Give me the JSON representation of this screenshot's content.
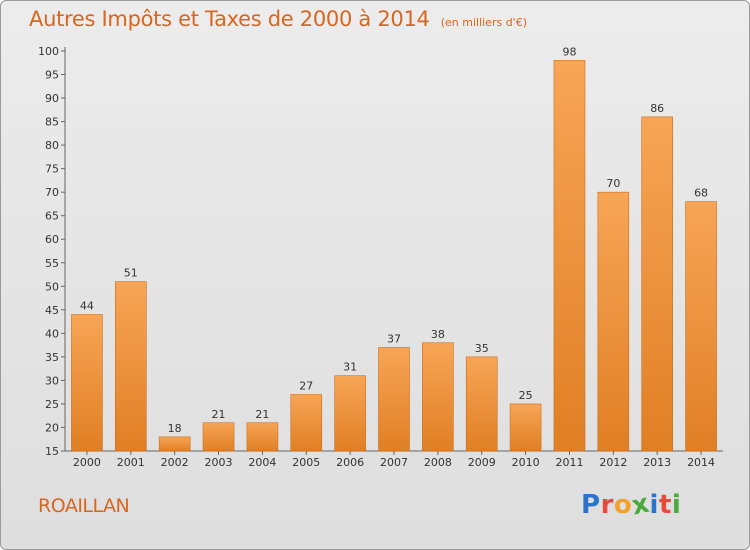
{
  "chart_data": {
    "type": "bar",
    "title": "Autres Impôts et Taxes de 2000 à 2014",
    "subtitle": "(en milliers d'€)",
    "categories": [
      "2000",
      "2001",
      "2002",
      "2003",
      "2004",
      "2005",
      "2006",
      "2007",
      "2008",
      "2009",
      "2010",
      "2011",
      "2012",
      "2013",
      "2014"
    ],
    "values": [
      44,
      51,
      18,
      21,
      21,
      27,
      31,
      37,
      38,
      35,
      25,
      98,
      70,
      86,
      68
    ],
    "ylim": [
      15,
      100
    ],
    "yticks": [
      15,
      20,
      25,
      30,
      35,
      40,
      45,
      50,
      55,
      60,
      65,
      70,
      75,
      80,
      85,
      90,
      95,
      100
    ],
    "grid": false,
    "colors": {
      "bar_top": "#f7a556",
      "bar_bottom": "#e07f24",
      "bar_edge": "#cc6e1a",
      "title": "#d9661e"
    }
  },
  "footer": {
    "commune": "ROAILLAN",
    "logo_letters": [
      "P",
      "r",
      "o",
      "x",
      "i",
      "t",
      "i"
    ],
    "logo_colors": [
      "#2b74c9",
      "#e7493b",
      "#f2a12b",
      "#4aab3c",
      "#2b74c9",
      "#e7493b",
      "#4aab3c"
    ]
  }
}
